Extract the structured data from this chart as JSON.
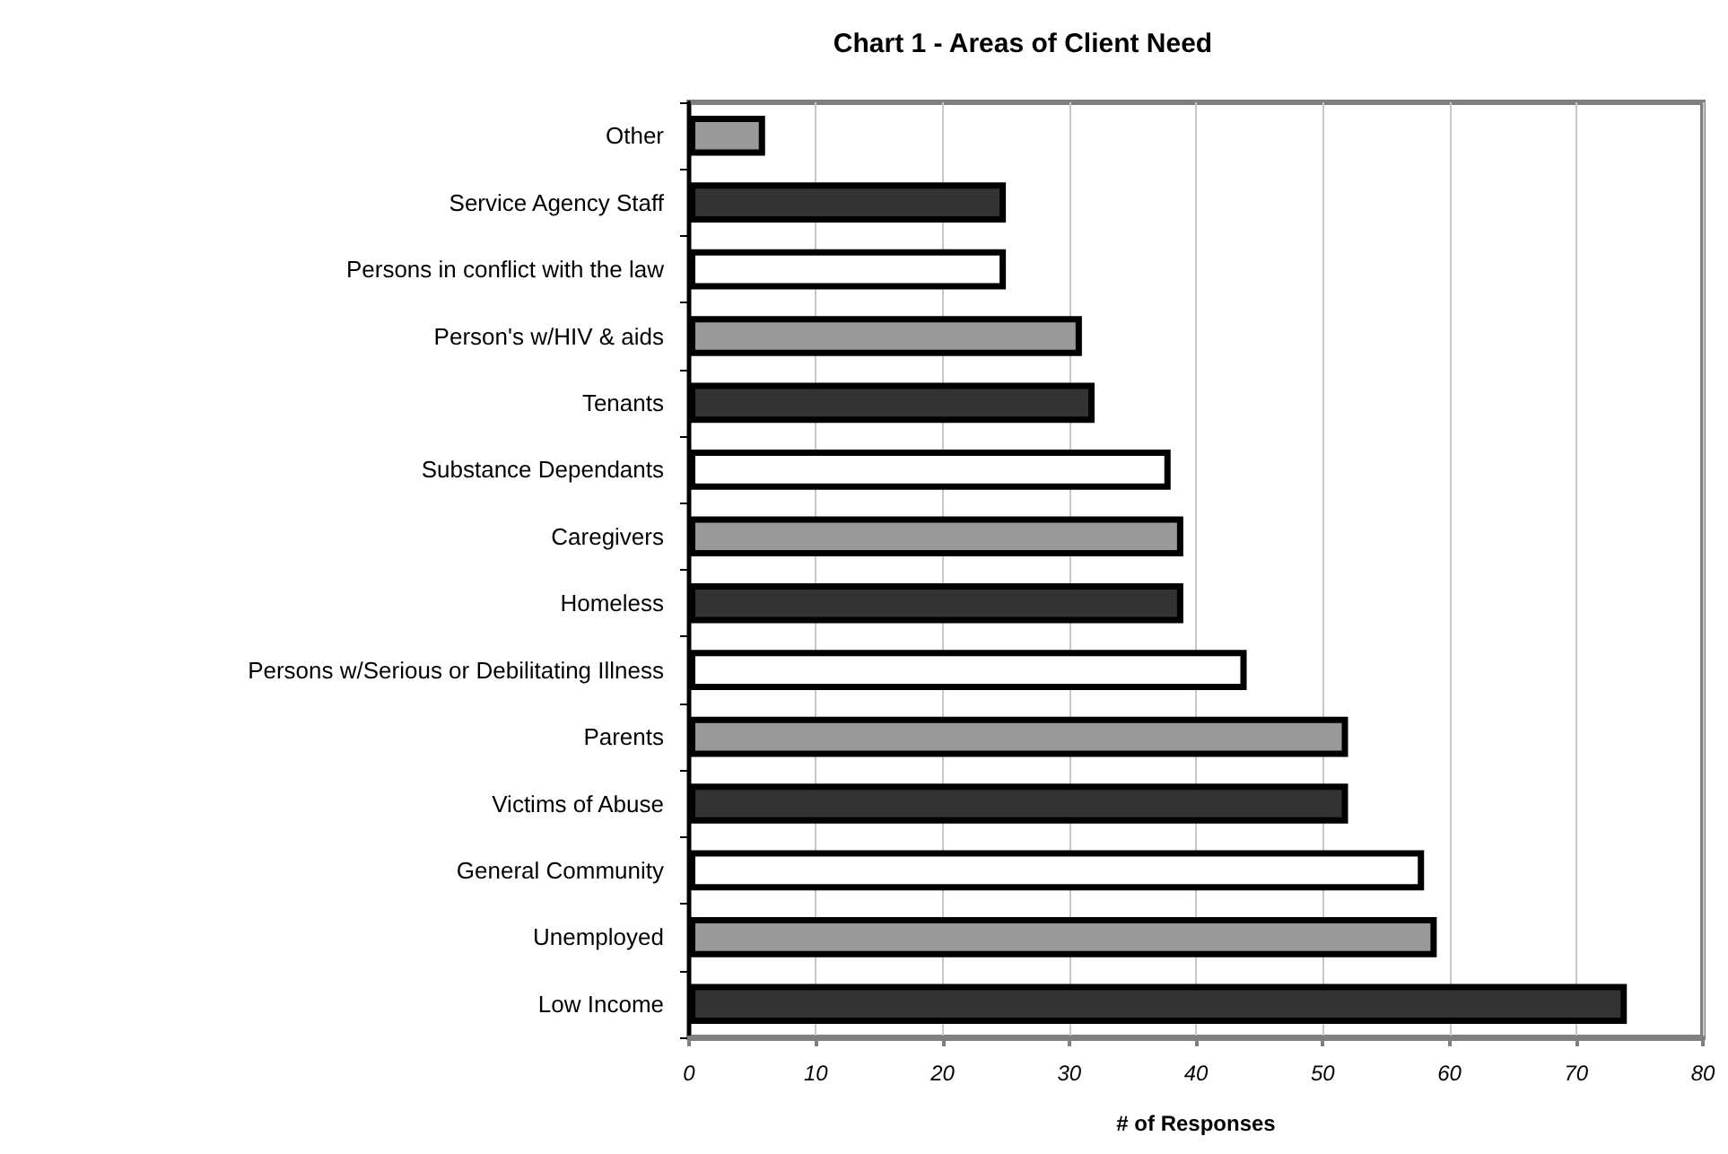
{
  "chart_data": {
    "type": "bar",
    "orientation": "horizontal",
    "title": "Chart 1 - Areas of Client Need",
    "xlabel": "# of Responses",
    "categories": [
      "Other",
      "Service Agency Staff",
      "Persons in conflict with the law",
      "Person's w/HIV & aids",
      "Tenants",
      "Substance Dependants",
      "Caregivers",
      "Homeless",
      "Persons w/Serious or Debilitating Illness",
      "Parents",
      "Victims of Abuse",
      "General Community",
      "Unemployed",
      "Low Income"
    ],
    "values": [
      6,
      25,
      25,
      31,
      32,
      38,
      39,
      39,
      44,
      52,
      52,
      58,
      59,
      74
    ],
    "colors": [
      "#999999",
      "#333333",
      "#ffffff",
      "#999999",
      "#333333",
      "#ffffff",
      "#999999",
      "#333333",
      "#ffffff",
      "#999999",
      "#333333",
      "#ffffff",
      "#999999",
      "#333333"
    ],
    "xlim": [
      0,
      80
    ],
    "xticks": [
      0,
      10,
      20,
      30,
      40,
      50,
      60,
      70,
      80
    ],
    "grid": "x"
  }
}
